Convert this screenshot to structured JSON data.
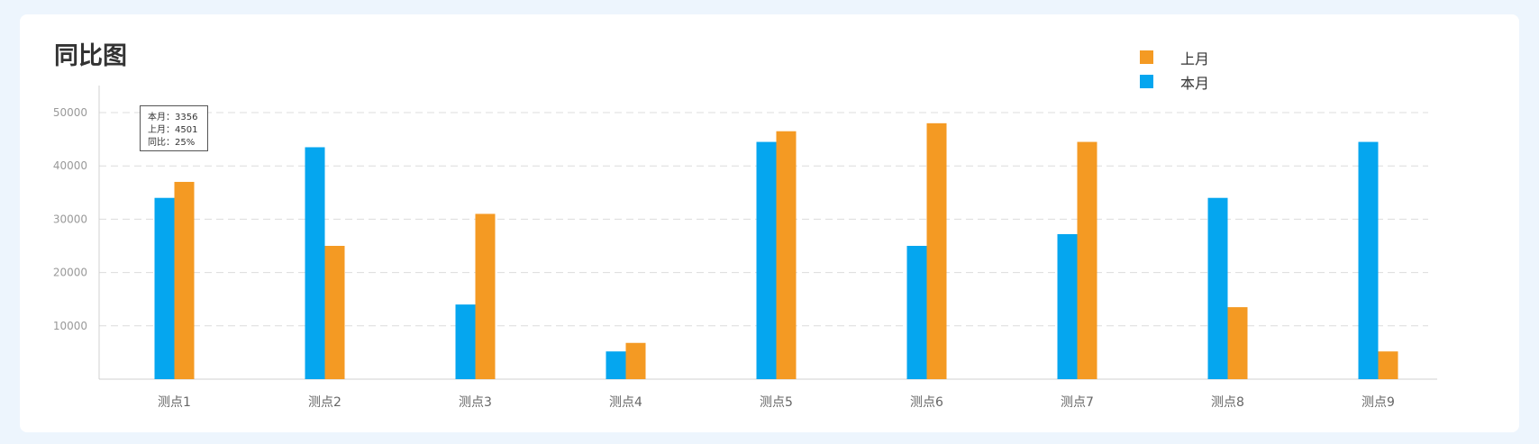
{
  "chart_data": {
    "type": "bar",
    "title": "同比图",
    "categories": [
      "测点1",
      "测点2",
      "测点3",
      "测点4",
      "测点5",
      "测点6",
      "测点7",
      "测点8",
      "测点9"
    ],
    "series": [
      {
        "name": "本月",
        "color": "#05a6ef",
        "values": [
          34000,
          43500,
          14000,
          5200,
          44500,
          25000,
          27200,
          34000,
          44500
        ]
      },
      {
        "name": "上月",
        "color": "#f49a23",
        "values": [
          37000,
          25000,
          31000,
          6800,
          46500,
          48000,
          44500,
          13500,
          5200
        ]
      }
    ],
    "yticks": [
      10000,
      20000,
      30000,
      40000,
      50000
    ],
    "ylim": [
      0,
      55000
    ],
    "grid": true,
    "legend": [
      {
        "name": "上月",
        "color": "#f49a23"
      },
      {
        "name": "本月",
        "color": "#05a6ef"
      }
    ],
    "legend_position": "top-right",
    "tooltip": {
      "lines": [
        "本月：3356",
        "上月：4501",
        "同比：25%"
      ]
    }
  }
}
